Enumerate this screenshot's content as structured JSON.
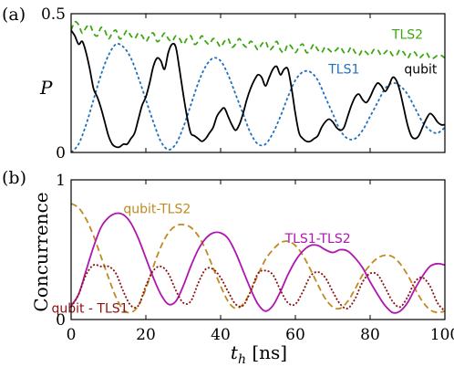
{
  "chart_data": [
    {
      "panel_label": "(a)",
      "type": "line",
      "ylabel": "P",
      "xlim": [
        0,
        100
      ],
      "ylim": [
        0,
        0.5
      ],
      "yticks": [
        {
          "v": 0,
          "label": "0"
        },
        {
          "v": 0.5,
          "label": "0.5"
        }
      ],
      "xticks": [
        0,
        20,
        40,
        60,
        80,
        100
      ],
      "grid": false,
      "series": [
        {
          "name": "TLS2",
          "color": "#3aa70e",
          "dash": "6,4",
          "x": [
            0,
            1,
            2,
            3,
            4,
            5,
            6,
            7,
            8,
            9,
            10,
            11,
            12,
            13,
            14,
            15,
            16,
            17,
            18,
            19,
            20,
            21,
            22,
            23,
            24,
            25,
            26,
            27,
            28,
            29,
            30,
            31,
            32,
            33,
            34,
            35,
            36,
            37,
            38,
            39,
            40,
            41,
            42,
            43,
            44,
            45,
            46,
            47,
            48,
            49,
            50,
            51,
            52,
            53,
            54,
            55,
            56,
            57,
            58,
            59,
            60,
            61,
            62,
            63,
            64,
            65,
            66,
            67,
            68,
            69,
            70,
            71,
            72,
            73,
            74,
            75,
            76,
            77,
            78,
            79,
            80,
            81,
            82,
            83,
            84,
            85,
            86,
            87,
            88,
            89,
            90,
            91,
            92,
            93,
            94,
            95,
            96,
            97,
            98,
            99,
            100
          ],
          "y": [
            0.44,
            0.47,
            0.46,
            0.43,
            0.45,
            0.46,
            0.43,
            0.42,
            0.45,
            0.44,
            0.41,
            0.43,
            0.44,
            0.41,
            0.42,
            0.44,
            0.42,
            0.41,
            0.43,
            0.42,
            0.4,
            0.42,
            0.43,
            0.4,
            0.41,
            0.43,
            0.41,
            0.4,
            0.42,
            0.41,
            0.39,
            0.41,
            0.42,
            0.39,
            0.4,
            0.42,
            0.4,
            0.39,
            0.41,
            0.4,
            0.38,
            0.4,
            0.41,
            0.38,
            0.39,
            0.41,
            0.39,
            0.38,
            0.4,
            0.39,
            0.37,
            0.39,
            0.4,
            0.37,
            0.38,
            0.4,
            0.37,
            0.36,
            0.39,
            0.38,
            0.36,
            0.38,
            0.39,
            0.36,
            0.37,
            0.39,
            0.37,
            0.36,
            0.38,
            0.37,
            0.36,
            0.37,
            0.38,
            0.36,
            0.36,
            0.38,
            0.36,
            0.35,
            0.37,
            0.36,
            0.35,
            0.37,
            0.37,
            0.35,
            0.36,
            0.37,
            0.35,
            0.35,
            0.37,
            0.36,
            0.34,
            0.36,
            0.36,
            0.34,
            0.35,
            0.36,
            0.34,
            0.34,
            0.35,
            0.35,
            0.34
          ]
        },
        {
          "name": "TLS1",
          "color": "#1f6fbf",
          "dash": "3,2.5",
          "x": [
            0,
            2,
            4,
            6,
            8,
            10,
            12,
            14,
            16,
            18,
            20,
            22,
            24,
            26,
            28,
            30,
            32,
            34,
            36,
            38,
            40,
            42,
            44,
            46,
            48,
            50,
            52,
            54,
            56,
            58,
            60,
            62,
            64,
            66,
            68,
            70,
            72,
            74,
            76,
            78,
            80,
            82,
            84,
            86,
            88,
            90,
            92,
            94,
            96,
            98,
            100
          ],
          "y": [
            0.0,
            0.03,
            0.1,
            0.19,
            0.28,
            0.35,
            0.39,
            0.38,
            0.34,
            0.27,
            0.19,
            0.11,
            0.04,
            0.01,
            0.03,
            0.09,
            0.17,
            0.25,
            0.31,
            0.34,
            0.33,
            0.28,
            0.21,
            0.14,
            0.07,
            0.03,
            0.03,
            0.07,
            0.13,
            0.2,
            0.26,
            0.29,
            0.29,
            0.26,
            0.2,
            0.14,
            0.08,
            0.05,
            0.05,
            0.08,
            0.13,
            0.18,
            0.23,
            0.25,
            0.24,
            0.21,
            0.16,
            0.11,
            0.08,
            0.07,
            0.09
          ]
        },
        {
          "name": "qubit",
          "color": "#000000",
          "dash": "",
          "x": [
            0,
            1,
            2,
            3,
            4,
            5,
            6,
            7,
            8,
            9,
            10,
            11,
            12,
            13,
            14,
            15,
            16,
            17,
            18,
            19,
            20,
            21,
            22,
            23,
            24,
            25,
            26,
            27,
            28,
            29,
            30,
            31,
            32,
            33,
            34,
            35,
            36,
            37,
            38,
            39,
            40,
            41,
            42,
            43,
            44,
            45,
            46,
            47,
            48,
            49,
            50,
            51,
            52,
            53,
            54,
            55,
            56,
            57,
            58,
            59,
            60,
            61,
            62,
            63,
            64,
            65,
            66,
            67,
            68,
            69,
            70,
            71,
            72,
            73,
            74,
            75,
            76,
            77,
            78,
            79,
            80,
            81,
            82,
            83,
            84,
            85,
            86,
            87,
            88,
            89,
            90,
            91,
            92,
            93,
            94,
            95,
            96,
            97,
            98,
            99,
            100
          ],
          "y": [
            0.44,
            0.42,
            0.39,
            0.4,
            0.36,
            0.3,
            0.23,
            0.2,
            0.16,
            0.11,
            0.06,
            0.03,
            0.02,
            0.02,
            0.03,
            0.03,
            0.05,
            0.07,
            0.12,
            0.17,
            0.2,
            0.25,
            0.31,
            0.34,
            0.33,
            0.3,
            0.36,
            0.39,
            0.38,
            0.3,
            0.21,
            0.13,
            0.07,
            0.06,
            0.05,
            0.04,
            0.05,
            0.07,
            0.09,
            0.13,
            0.15,
            0.16,
            0.13,
            0.1,
            0.08,
            0.1,
            0.14,
            0.19,
            0.23,
            0.26,
            0.28,
            0.27,
            0.24,
            0.27,
            0.3,
            0.31,
            0.28,
            0.3,
            0.3,
            0.23,
            0.14,
            0.07,
            0.05,
            0.04,
            0.04,
            0.05,
            0.06,
            0.09,
            0.11,
            0.12,
            0.11,
            0.09,
            0.08,
            0.09,
            0.13,
            0.17,
            0.2,
            0.21,
            0.19,
            0.18,
            0.2,
            0.23,
            0.25,
            0.24,
            0.22,
            0.24,
            0.27,
            0.26,
            0.22,
            0.16,
            0.1,
            0.06,
            0.05,
            0.06,
            0.09,
            0.12,
            0.14,
            0.13,
            0.11,
            0.1,
            0.1
          ]
        }
      ],
      "labels": [
        {
          "series": "TLS2",
          "text": "TLS2",
          "x": 90,
          "y": 0.41
        },
        {
          "series": "TLS1",
          "text": "TLS1",
          "x": 73,
          "y": 0.285
        },
        {
          "series": "qubit",
          "text": "qubit",
          "x": 93.5,
          "y": 0.285
        }
      ]
    },
    {
      "panel_label": "(b)",
      "type": "line",
      "ylabel": "Concurrence",
      "xlabel_main": "t",
      "xlabel_sub": "h",
      "xlabel_unit": " [ns]",
      "xlim": [
        0,
        100
      ],
      "ylim": [
        0,
        1
      ],
      "yticks": [
        {
          "v": 0,
          "label": "0"
        },
        {
          "v": 1,
          "label": "1"
        }
      ],
      "xticks": [
        0,
        20,
        40,
        60,
        80,
        100
      ],
      "grid": false,
      "series": [
        {
          "name": "qubit-TLS2",
          "color": "#c08a1f",
          "dash": "7,4",
          "x": [
            0,
            2,
            4,
            6,
            8,
            10,
            12,
            14,
            16,
            18,
            20,
            22,
            24,
            26,
            28,
            30,
            32,
            34,
            36,
            38,
            40,
            42,
            44,
            46,
            48,
            50,
            52,
            54,
            56,
            58,
            60,
            62,
            64,
            66,
            68,
            70,
            72,
            74,
            76,
            78,
            80,
            82,
            84,
            86,
            88,
            90,
            92,
            94,
            96,
            98,
            100
          ],
          "y": [
            0.83,
            0.8,
            0.72,
            0.6,
            0.45,
            0.3,
            0.16,
            0.07,
            0.05,
            0.1,
            0.22,
            0.38,
            0.52,
            0.62,
            0.67,
            0.68,
            0.66,
            0.6,
            0.5,
            0.37,
            0.24,
            0.13,
            0.08,
            0.11,
            0.2,
            0.32,
            0.43,
            0.5,
            0.55,
            0.56,
            0.53,
            0.46,
            0.36,
            0.25,
            0.15,
            0.09,
            0.08,
            0.13,
            0.22,
            0.32,
            0.39,
            0.44,
            0.46,
            0.45,
            0.4,
            0.32,
            0.22,
            0.13,
            0.07,
            0.05,
            0.06
          ]
        },
        {
          "name": "TLS1-TLS2",
          "color": "#b015b0",
          "dash": "",
          "x": [
            0,
            2,
            4,
            6,
            8,
            10,
            12,
            14,
            16,
            18,
            20,
            22,
            24,
            26,
            28,
            30,
            32,
            34,
            36,
            38,
            40,
            42,
            44,
            46,
            48,
            50,
            52,
            54,
            56,
            58,
            60,
            62,
            64,
            66,
            68,
            70,
            72,
            74,
            76,
            78,
            80,
            82,
            84,
            86,
            88,
            90,
            92,
            94,
            96,
            98,
            100
          ],
          "y": [
            0.1,
            0.18,
            0.35,
            0.52,
            0.66,
            0.73,
            0.76,
            0.75,
            0.69,
            0.58,
            0.44,
            0.3,
            0.18,
            0.11,
            0.13,
            0.24,
            0.38,
            0.5,
            0.58,
            0.62,
            0.62,
            0.58,
            0.48,
            0.35,
            0.22,
            0.11,
            0.06,
            0.1,
            0.2,
            0.32,
            0.42,
            0.49,
            0.53,
            0.53,
            0.5,
            0.48,
            0.5,
            0.49,
            0.44,
            0.37,
            0.27,
            0.18,
            0.1,
            0.05,
            0.06,
            0.12,
            0.22,
            0.31,
            0.38,
            0.4,
            0.39
          ]
        },
        {
          "name": "qubit - TLS1",
          "color": "#8b1010",
          "dash": "2,2",
          "x": [
            0,
            2,
            4,
            6,
            8,
            10,
            12,
            14,
            16,
            18,
            20,
            22,
            24,
            26,
            28,
            30,
            32,
            34,
            36,
            38,
            40,
            42,
            44,
            46,
            48,
            50,
            52,
            54,
            56,
            58,
            60,
            62,
            64,
            66,
            68,
            70,
            72,
            74,
            76,
            78,
            80,
            82,
            84,
            86,
            88,
            90,
            92,
            94,
            96,
            98,
            100
          ],
          "y": [
            0.09,
            0.18,
            0.32,
            0.39,
            0.38,
            0.38,
            0.33,
            0.2,
            0.1,
            0.1,
            0.24,
            0.35,
            0.38,
            0.33,
            0.21,
            0.12,
            0.13,
            0.26,
            0.36,
            0.36,
            0.3,
            0.2,
            0.11,
            0.1,
            0.2,
            0.33,
            0.35,
            0.32,
            0.21,
            0.12,
            0.11,
            0.2,
            0.31,
            0.34,
            0.3,
            0.2,
            0.11,
            0.08,
            0.15,
            0.27,
            0.33,
            0.32,
            0.23,
            0.13,
            0.09,
            0.16,
            0.27,
            0.3,
            0.24,
            0.12,
            0.06
          ]
        }
      ],
      "labels": [
        {
          "series": "qubit-TLS2",
          "text": "qubit-TLS2",
          "x": 23,
          "y": 0.76
        },
        {
          "series": "TLS1-TLS2",
          "text": "TLS1-TLS2",
          "x": 66,
          "y": 0.55
        },
        {
          "series": "qubit - TLS1",
          "text": "qubit - TLS1",
          "x": 5,
          "y": 0.05
        }
      ]
    }
  ]
}
